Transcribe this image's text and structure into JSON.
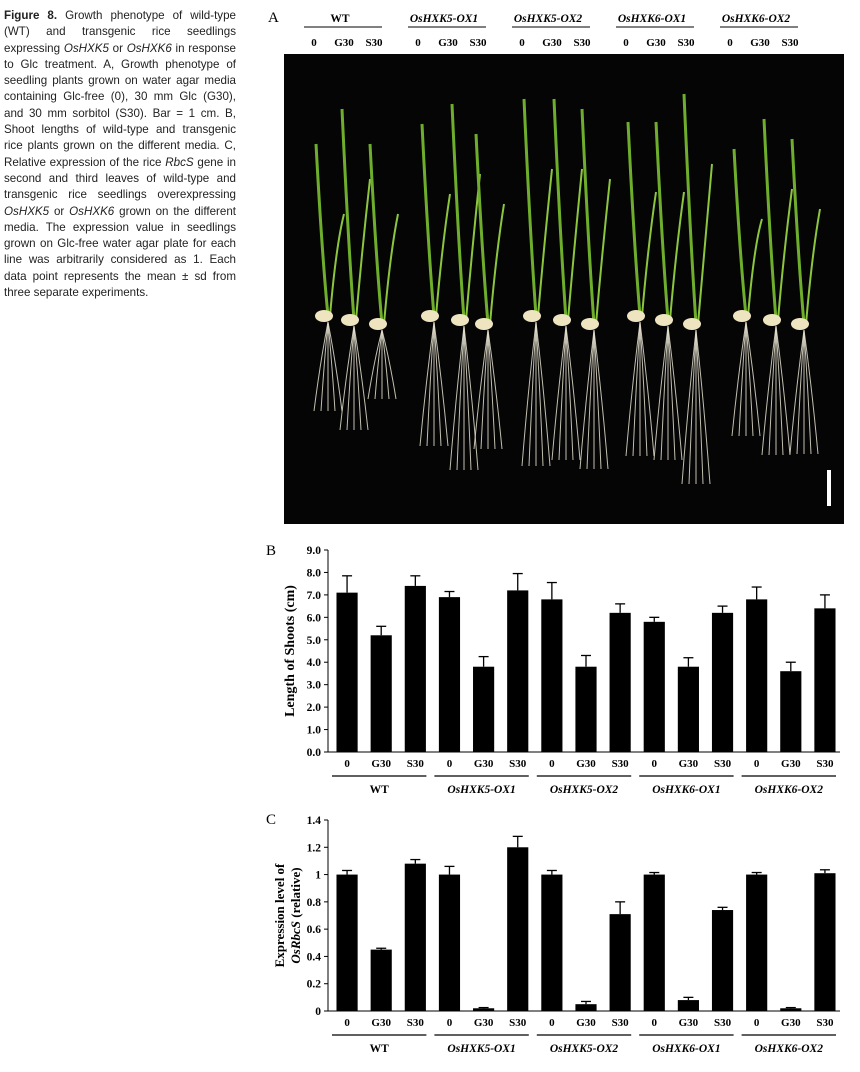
{
  "caption": {
    "label": "Figure 8.",
    "p1": "Growth phenotype of wild-type (WT) and transgenic rice seedlings expressing ",
    "g1": "OsHXK5",
    "p2": " or ",
    "g2": "OsHXK6",
    "p3": " in response to Glc treatment. A, Growth phenotype of seedling plants grown on water agar media containing Glc-free (0), 30 mm Glc (G30), and 30 mm sorbitol (S30). Bar = 1 cm. B, Shoot lengths of wild-type and transgenic rice plants grown on the different media. C, Relative expression of the rice ",
    "g3": "RbcS",
    "p4": " gene in second and third leaves of wild-type and transgenic rice seedlings overexpressing ",
    "g4": "OsHXK5",
    "p5": " or ",
    "g5": "OsHXK6",
    "p6": " grown on the different media. The expression value in seedlings grown on Glc-free water agar plate for each line was arbitrarily considered as 1. Each data point represents the mean ± sd from three separate experiments."
  },
  "panels": {
    "a": "A",
    "b": "B",
    "c": "C"
  },
  "groups": [
    "WT",
    "OsHXK5-OX1",
    "OsHXK5-OX2",
    "OsHXK6-OX1",
    "OsHXK6-OX2"
  ],
  "treatments": [
    "0",
    "G30",
    "S30"
  ],
  "colors": {
    "bar": "#000000",
    "photo_bg": "#050505",
    "shoot": "#6fae2c",
    "root": "#e4e0cf",
    "seed": "#efe4c0"
  },
  "chart_data": [
    {
      "type": "bar",
      "panel": "B",
      "ylabel": "Length of Shoots  (cm)",
      "ylim": [
        0,
        9
      ],
      "yticks": [
        "0.0",
        "1.0",
        "2.0",
        "3.0",
        "4.0",
        "5.0",
        "6.0",
        "7.0",
        "8.0",
        "9.0"
      ],
      "groups": [
        "WT",
        "OsHXK5-OX1",
        "OsHXK5-OX2",
        "OsHXK6-OX1",
        "OsHXK6-OX2"
      ],
      "categories": [
        "0",
        "G30",
        "S30"
      ],
      "values": [
        [
          7.1,
          5.2,
          7.4
        ],
        [
          6.9,
          3.8,
          7.2
        ],
        [
          6.8,
          3.8,
          6.2
        ],
        [
          5.8,
          3.8,
          6.2
        ],
        [
          6.8,
          3.6,
          6.4
        ]
      ],
      "errors": [
        [
          0.75,
          0.4,
          0.45
        ],
        [
          0.25,
          0.45,
          0.75
        ],
        [
          0.75,
          0.5,
          0.4
        ],
        [
          0.2,
          0.4,
          0.3
        ],
        [
          0.55,
          0.4,
          0.6
        ]
      ]
    },
    {
      "type": "bar",
      "panel": "C",
      "ylabel_line1": "Expression level of",
      "ylabel_line2_italic": "OsRbcS",
      "ylabel_line2_rest": " (relative)",
      "ylim": [
        0,
        1.4
      ],
      "yticks": [
        "0",
        "0.2",
        "0.4",
        "0.6",
        "0.8",
        "1",
        "1.2",
        "1.4"
      ],
      "groups": [
        "WT",
        "OsHXK5-OX1",
        "OsHXK5-OX2",
        "OsHXK6-OX1",
        "OsHXK6-OX2"
      ],
      "categories": [
        "0",
        "G30",
        "S30"
      ],
      "values": [
        [
          1.0,
          0.45,
          1.08
        ],
        [
          1.0,
          0.02,
          1.2
        ],
        [
          1.0,
          0.05,
          0.71
        ],
        [
          1.0,
          0.08,
          0.74
        ],
        [
          1.0,
          0.02,
          1.01
        ]
      ],
      "errors": [
        [
          0.03,
          0.01,
          0.03
        ],
        [
          0.06,
          0.005,
          0.08
        ],
        [
          0.03,
          0.02,
          0.09
        ],
        [
          0.015,
          0.02,
          0.02
        ],
        [
          0.015,
          0.005,
          0.025
        ]
      ]
    }
  ]
}
